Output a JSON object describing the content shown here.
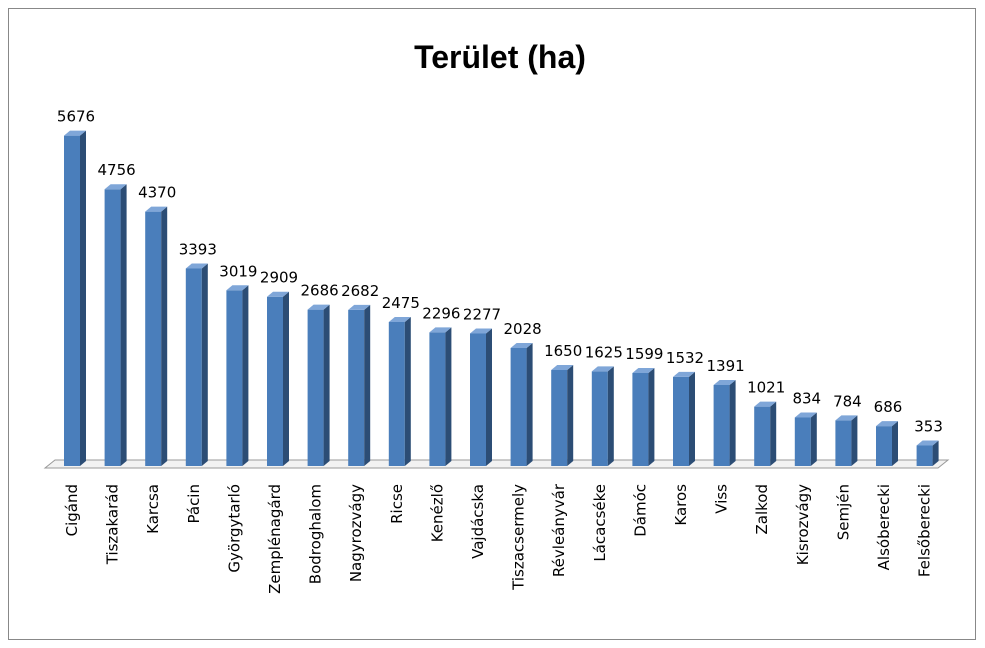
{
  "chart_data": {
    "type": "bar3d",
    "title": "Terület (ha)",
    "categories": [
      "Cigánd",
      "Tiszakarád",
      "Karcsa",
      "Pácin",
      "Györgytarló",
      "Zemplénagárd",
      "Bodroghalom",
      "Nagyrozvágy",
      "Ricse",
      "Kenézlő",
      "Vajdácska",
      "Tiszacsermely",
      "Révleányvár",
      "Lácacséke",
      "Dámóc",
      "Karos",
      "Viss",
      "Zalkod",
      "Kisrozvágy",
      "Semjén",
      "Alsóberecki",
      "Felsőberecki"
    ],
    "values": [
      5676,
      4756,
      4370,
      3393,
      3019,
      2909,
      2686,
      2682,
      2475,
      2296,
      2277,
      2028,
      1650,
      1625,
      1599,
      1532,
      1391,
      1021,
      834,
      784,
      686,
      353
    ],
    "color": "#4a7ebb"
  }
}
